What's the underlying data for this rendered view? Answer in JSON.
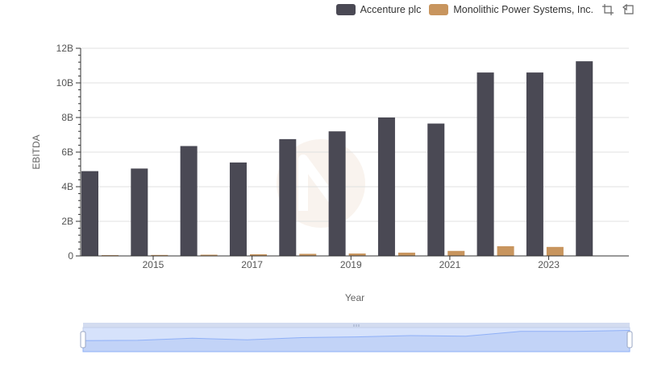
{
  "colors": {
    "accenture": "#4a4954",
    "mps": "#c8955e",
    "axis": "#333333",
    "grid": "#e0e0e0",
    "slider_fill": "#d6e2fb",
    "slider_line": "#8fb0f7"
  },
  "legend": [
    {
      "name": "Accenture plc",
      "color": "#4a4954"
    },
    {
      "name": "Monolithic Power Systems, Inc.",
      "color": "#c8955e"
    }
  ],
  "toolbar": {
    "icons": [
      "zoom-icon",
      "restore-icon"
    ]
  },
  "chart_data": {
    "type": "bar",
    "xlabel": "Year",
    "ylabel": "EBITDA",
    "categories": [
      "2014",
      "2015",
      "2016",
      "2017",
      "2018",
      "2019",
      "2020",
      "2021",
      "2022",
      "2023",
      "2024"
    ],
    "x_tick_labels": [
      "2015",
      "2017",
      "2019",
      "2021",
      "2023"
    ],
    "y_tick_labels": [
      "0",
      "2B",
      "4B",
      "6B",
      "8B",
      "10B",
      "12B"
    ],
    "ylim": [
      0,
      12000000000
    ],
    "grid": true,
    "legend_position": "top-right",
    "series": [
      {
        "name": "Accenture plc",
        "values": [
          4900000000,
          5050000000,
          6350000000,
          5400000000,
          6750000000,
          7200000000,
          8000000000,
          7650000000,
          10600000000,
          10600000000,
          11250000000
        ]
      },
      {
        "name": "Monolithic Power Systems, Inc.",
        "values": [
          45000000,
          55000000,
          70000000,
          95000000,
          120000000,
          140000000,
          190000000,
          290000000,
          560000000,
          520000000,
          null
        ]
      }
    ]
  }
}
